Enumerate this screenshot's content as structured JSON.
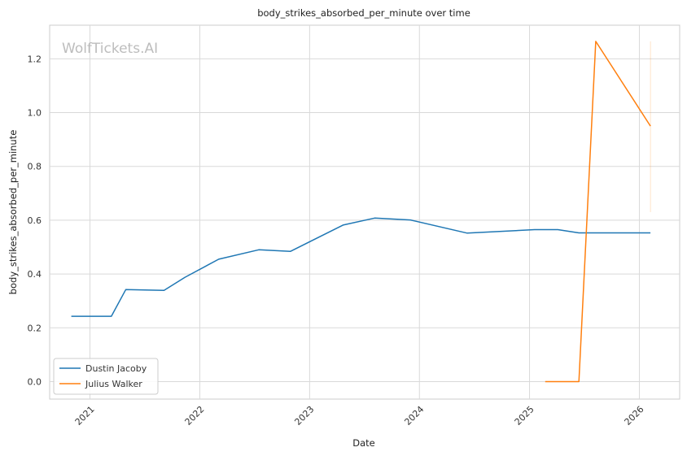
{
  "chart_data": {
    "type": "line",
    "title": "body_strikes_absorbed_per_minute over time",
    "xlabel": "Date",
    "ylabel": "body_strikes_absorbed_per_minute",
    "watermark": "WolfTickets.AI",
    "x_ticks": [
      "2021",
      "2022",
      "2023",
      "2024",
      "2025",
      "2026"
    ],
    "y_ticks": [
      "0.0",
      "0.2",
      "0.4",
      "0.6",
      "0.8",
      "1.0",
      "1.2"
    ],
    "xlim": [
      "2020-08-20",
      "2026-05-15"
    ],
    "ylim": [
      -0.065,
      1.325
    ],
    "grid": true,
    "legend_position": "lower-left",
    "series": [
      {
        "name": "Dustin Jacoby",
        "color": "#1f77b4",
        "x": [
          "2020-10-31",
          "2021-03-13",
          "2021-04-30",
          "2021-09-04",
          "2021-11-13",
          "2022-03-05",
          "2022-07-16",
          "2022-10-29",
          "2023-04-22",
          "2023-08-05",
          "2023-12-02",
          "2024-06-08",
          "2025-01-18",
          "2025-04-05",
          "2025-06-14",
          "2025-08-09",
          "2026-02-07"
        ],
        "y": [
          0.243,
          0.243,
          0.342,
          0.339,
          0.388,
          0.455,
          0.49,
          0.484,
          0.582,
          0.608,
          0.601,
          0.552,
          0.565,
          0.565,
          0.553,
          0.553,
          0.553
        ]
      },
      {
        "name": "Julius Walker",
        "color": "#ff7f0e",
        "x": [
          "2025-02-22",
          "2025-06-14",
          "2025-08-09",
          "2026-02-07"
        ],
        "y": [
          0.0,
          0.0,
          1.265,
          0.95
        ]
      }
    ]
  }
}
